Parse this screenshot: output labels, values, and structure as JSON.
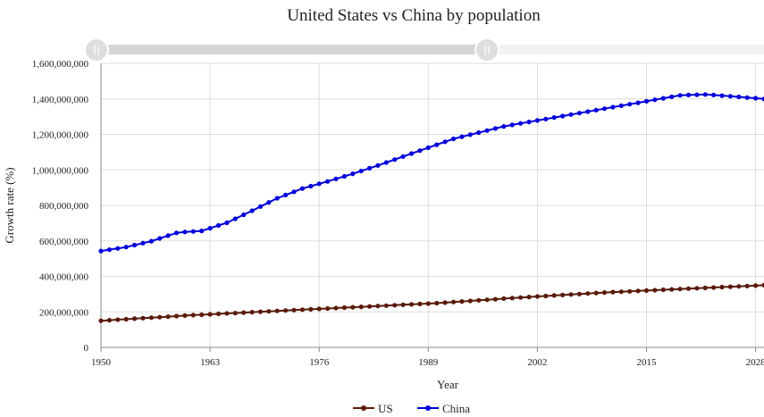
{
  "chart_data": {
    "type": "line",
    "title": "United States vs China by population",
    "xlabel": "Year",
    "ylabel": "Growth rate (%)",
    "x_ticks": [
      "1950",
      "1963",
      "1976",
      "1989",
      "2002",
      "2015",
      "2028"
    ],
    "y_ticks": [
      "0",
      "200,000,000",
      "400,000,000",
      "600,000,000",
      "800,000,000",
      "1,000,000,000",
      "1,200,000,000",
      "1,400,000,000",
      "1,600,000,000"
    ],
    "xlim": [
      1950,
      2029
    ],
    "ylim": [
      0,
      1600000000
    ],
    "grid": true,
    "legend_position": "bottom-center",
    "range_slider": {
      "from_year": 1950,
      "to_year": 1996
    },
    "series": [
      {
        "name": "US",
        "color": "#5a1a0a",
        "points": [
          [
            1950,
            150000000
          ],
          [
            1960,
            179000000
          ],
          [
            1970,
            203000000
          ],
          [
            1980,
            226000000
          ],
          [
            1990,
            249000000
          ],
          [
            2000,
            281000000
          ],
          [
            2010,
            309000000
          ],
          [
            2020,
            331000000
          ],
          [
            2029,
            350000000
          ]
        ]
      },
      {
        "name": "China",
        "color": "#0000dd",
        "points": [
          [
            1950,
            543000000
          ],
          [
            1953,
            565000000
          ],
          [
            1956,
            598000000
          ],
          [
            1959,
            645000000
          ],
          [
            1960,
            650000000
          ],
          [
            1962,
            656000000
          ],
          [
            1965,
            702000000
          ],
          [
            1968,
            770000000
          ],
          [
            1971,
            840000000
          ],
          [
            1974,
            895000000
          ],
          [
            1977,
            935000000
          ],
          [
            1980,
            978000000
          ],
          [
            1983,
            1025000000
          ],
          [
            1986,
            1075000000
          ],
          [
            1989,
            1125000000
          ],
          [
            1992,
            1175000000
          ],
          [
            1995,
            1210000000
          ],
          [
            1998,
            1245000000
          ],
          [
            2001,
            1270000000
          ],
          [
            2004,
            1295000000
          ],
          [
            2007,
            1320000000
          ],
          [
            2010,
            1345000000
          ],
          [
            2013,
            1370000000
          ],
          [
            2016,
            1395000000
          ],
          [
            2019,
            1420000000
          ],
          [
            2022,
            1425000000
          ],
          [
            2025,
            1415000000
          ],
          [
            2029,
            1400000000
          ]
        ]
      }
    ]
  }
}
